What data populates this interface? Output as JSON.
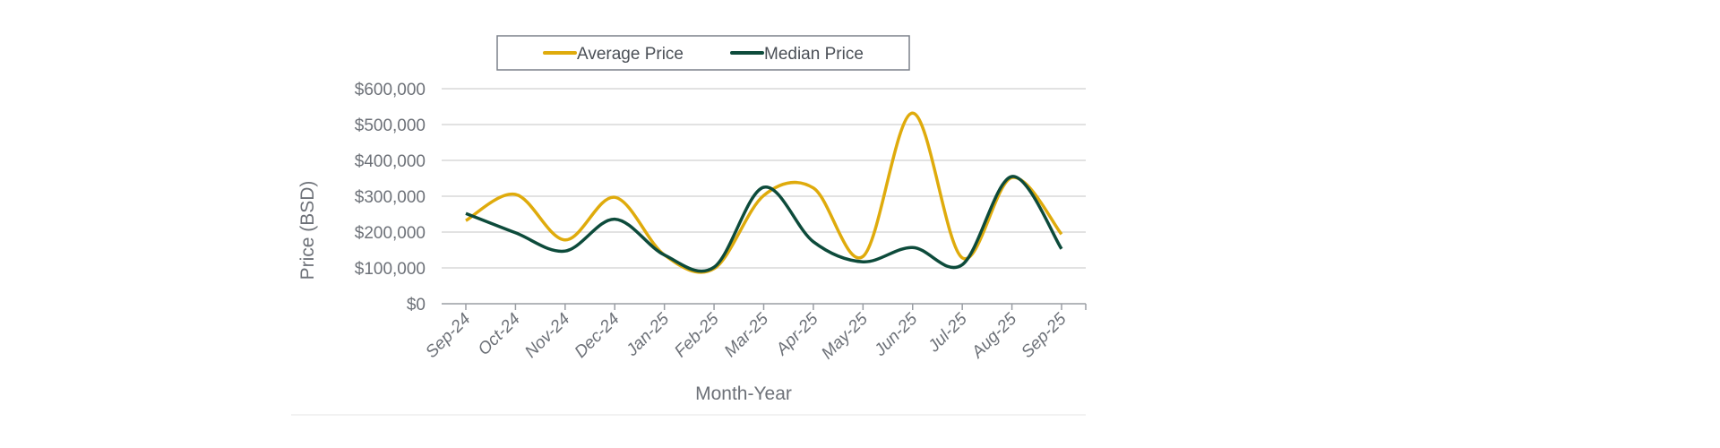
{
  "chart_data": {
    "type": "line",
    "title": "",
    "xlabel": "Month-Year",
    "ylabel": "Price (BSD)",
    "ylim": [
      0,
      600000
    ],
    "yticks": [
      "$0",
      "$100,000",
      "$200,000",
      "$300,000",
      "$400,000",
      "$500,000",
      "$600,000"
    ],
    "ytick_values": [
      0,
      100000,
      200000,
      300000,
      400000,
      500000,
      600000
    ],
    "grid": true,
    "legend_position": "top",
    "categories": [
      "Sep-24",
      "Oct-24",
      "Nov-24",
      "Dec-24",
      "Jan-25",
      "Feb-25",
      "Mar-25",
      "Apr-25",
      "May-25",
      "Jun-25",
      "Jul-25",
      "Aug-25",
      "Sep-25"
    ],
    "series": [
      {
        "name": "Average Price",
        "color": "#DFAB0C",
        "values": [
          232000,
          305000,
          178000,
          297000,
          136000,
          98000,
          302000,
          323000,
          132000,
          532000,
          128000,
          352000,
          194000
        ]
      },
      {
        "name": "Median Price",
        "color": "#0D4B3B",
        "values": [
          252000,
          198000,
          147000,
          236000,
          136000,
          102000,
          325000,
          173000,
          117000,
          157000,
          109000,
          355000,
          153000
        ]
      }
    ]
  }
}
